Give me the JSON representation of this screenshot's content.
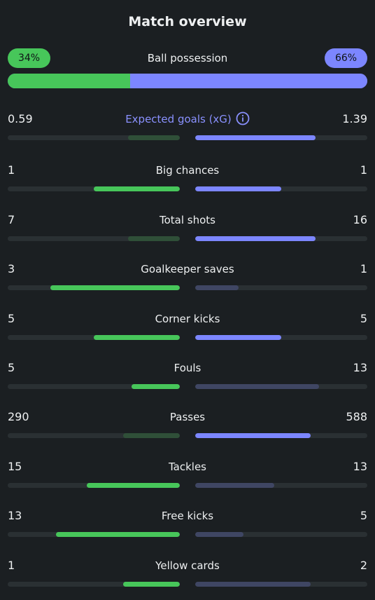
{
  "title": "Match overview",
  "possession": {
    "label": "Ball possession",
    "home_value": "34%",
    "away_value": "66%",
    "home_fraction": 0.34,
    "away_fraction": 0.66
  },
  "colors": {
    "home_strong": "#47c65a",
    "home_weak": "#2f4f38",
    "away_strong": "#7c86ff",
    "away_weak": "#3f4663",
    "track": "#2a3033",
    "background": "#1b1f22",
    "accent_label": "#8a91ff"
  },
  "icons": {
    "info": "info-icon"
  },
  "stats": [
    {
      "label": "Expected goals (xG)",
      "home": "0.59",
      "away": "1.39",
      "home_fill": 0.3,
      "away_fill": 0.7,
      "leader": "away",
      "accent": true,
      "info": true
    },
    {
      "label": "Big chances",
      "home": "1",
      "away": "1",
      "home_fill": 0.5,
      "away_fill": 0.5,
      "leader": "both"
    },
    {
      "label": "Total shots",
      "home": "7",
      "away": "16",
      "home_fill": 0.3,
      "away_fill": 0.7,
      "leader": "away"
    },
    {
      "label": "Goalkeeper saves",
      "home": "3",
      "away": "1",
      "home_fill": 0.75,
      "away_fill": 0.25,
      "leader": "home"
    },
    {
      "label": "Corner kicks",
      "home": "5",
      "away": "5",
      "home_fill": 0.5,
      "away_fill": 0.5,
      "leader": "both"
    },
    {
      "label": "Fouls",
      "home": "5",
      "away": "13",
      "home_fill": 0.28,
      "away_fill": 0.72,
      "leader": "home"
    },
    {
      "label": "Passes",
      "home": "290",
      "away": "588",
      "home_fill": 0.33,
      "away_fill": 0.67,
      "leader": "away"
    },
    {
      "label": "Tackles",
      "home": "15",
      "away": "13",
      "home_fill": 0.54,
      "away_fill": 0.46,
      "leader": "home"
    },
    {
      "label": "Free kicks",
      "home": "13",
      "away": "5",
      "home_fill": 0.72,
      "away_fill": 0.28,
      "leader": "home"
    },
    {
      "label": "Yellow cards",
      "home": "1",
      "away": "2",
      "home_fill": 0.33,
      "away_fill": 0.67,
      "leader": "home"
    }
  ]
}
